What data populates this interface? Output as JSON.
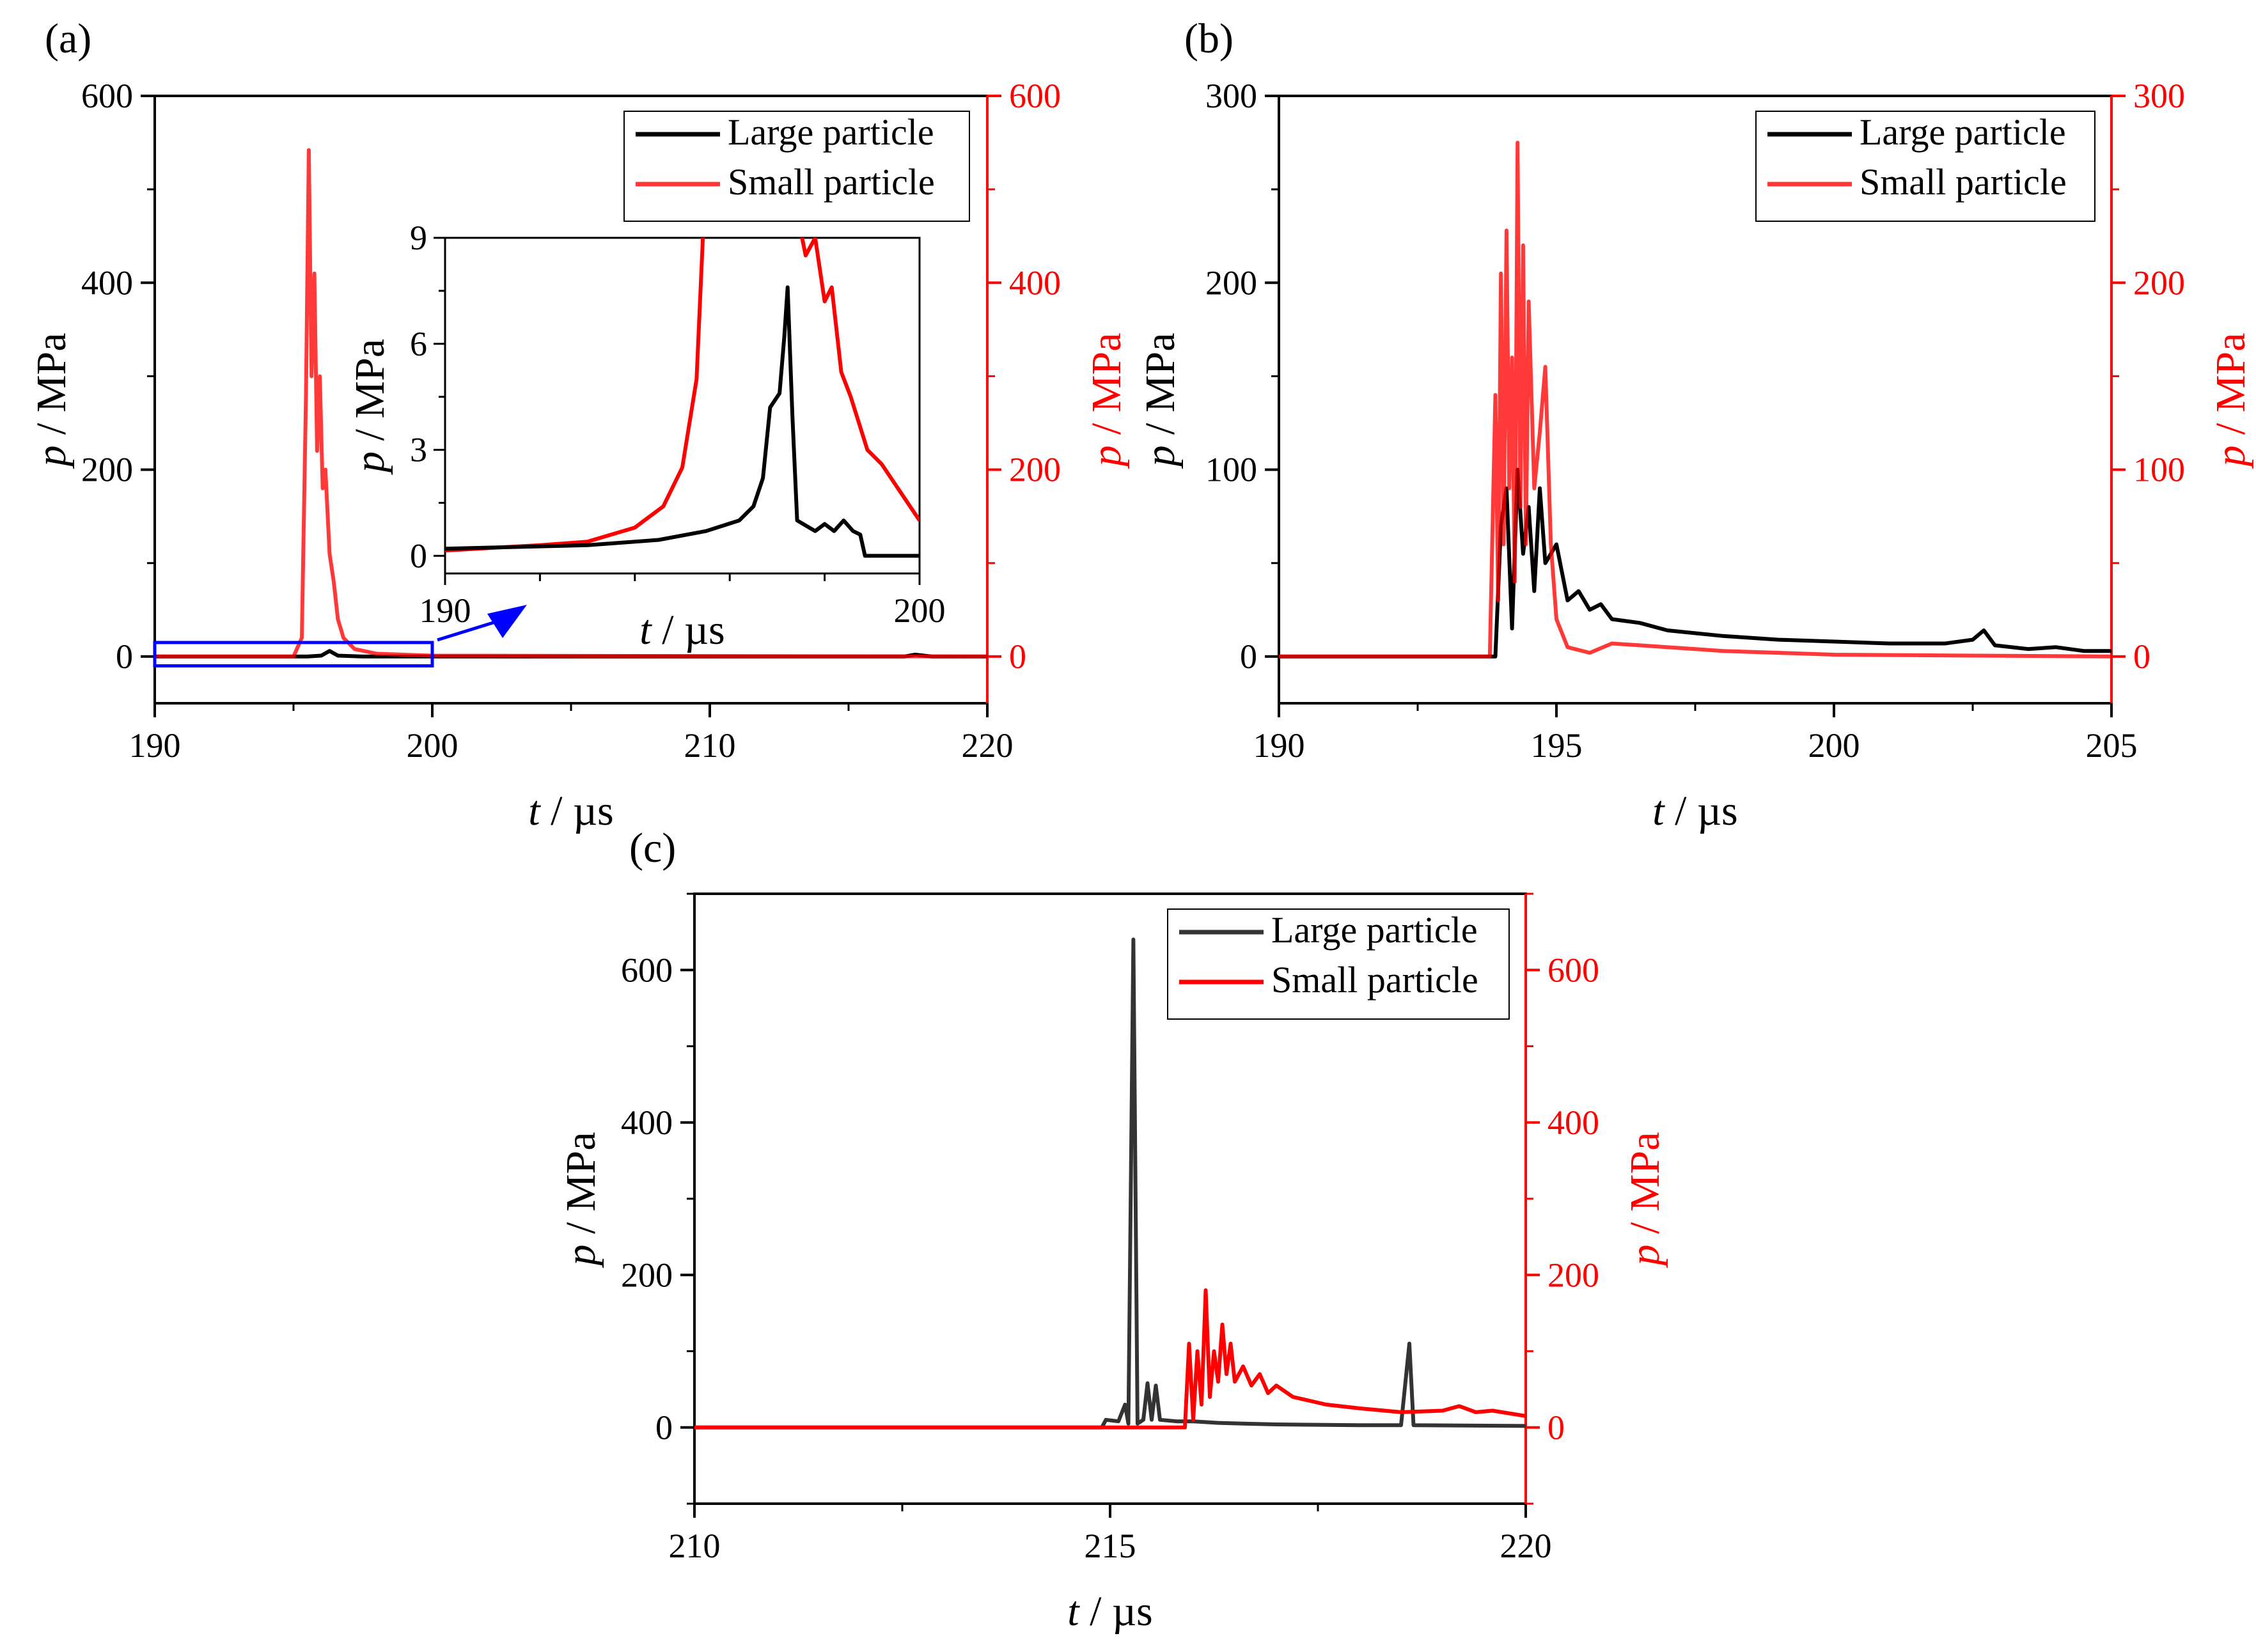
{
  "chart_data": [
    {
      "type": "line",
      "panel_label": "(a)",
      "xlabel_var": "t",
      "xlabel_unit": " / µs",
      "ylabel_var": "p",
      "ylabel_unit": " / MPa",
      "xlim": [
        190,
        220
      ],
      "ylim": [
        -50,
        600
      ],
      "y2lim": [
        -50,
        600
      ],
      "xticks": [
        190,
        200,
        210,
        220
      ],
      "yticks": [
        0,
        200,
        400,
        600
      ],
      "y2ticks": [
        0,
        200,
        400,
        600
      ],
      "legend_position": "top-right",
      "series": [
        {
          "name": "Large particle",
          "color": "#000000",
          "axis": "left",
          "points": [
            [
              190,
              0
            ],
            [
              195.5,
              0
            ],
            [
              196,
              1
            ],
            [
              196.3,
              6
            ],
            [
              196.6,
              1
            ],
            [
              197.5,
              0
            ],
            [
              217,
              0
            ],
            [
              217.4,
              2
            ],
            [
              218,
              0
            ],
            [
              220,
              0
            ]
          ]
        },
        {
          "name": "Small particle",
          "color": "#ff0000",
          "axis": "right",
          "points": [
            [
              190,
              0
            ],
            [
              195,
              0
            ],
            [
              195.3,
              20
            ],
            [
              195.45,
              280
            ],
            [
              195.55,
              542
            ],
            [
              195.65,
              300
            ],
            [
              195.75,
              410
            ],
            [
              195.85,
              220
            ],
            [
              195.95,
              300
            ],
            [
              196.05,
              180
            ],
            [
              196.15,
              200
            ],
            [
              196.3,
              110
            ],
            [
              196.45,
              80
            ],
            [
              196.6,
              40
            ],
            [
              196.8,
              20
            ],
            [
              197.2,
              8
            ],
            [
              198,
              3
            ],
            [
              200,
              1
            ],
            [
              220,
              0
            ]
          ]
        }
      ],
      "zoom_box": {
        "x": [
          190,
          200
        ],
        "y": [
          -10,
          15
        ]
      },
      "inset": {
        "xlim": [
          190,
          200
        ],
        "ylim": [
          -0.5,
          9
        ],
        "xticks": [
          190,
          200
        ],
        "yticks": [
          0,
          3,
          6,
          9
        ],
        "xlabel_var": "t",
        "xlabel_unit": " / µs",
        "ylabel_var": "p",
        "ylabel_unit": " / MPa",
        "series": [
          {
            "name": "Large particle",
            "color": "#000000",
            "points": [
              [
                190,
                0.2
              ],
              [
                193,
                0.3
              ],
              [
                194.5,
                0.45
              ],
              [
                195.5,
                0.7
              ],
              [
                196.2,
                1.0
              ],
              [
                196.5,
                1.4
              ],
              [
                196.7,
                2.2
              ],
              [
                196.85,
                4.2
              ],
              [
                197.05,
                4.6
              ],
              [
                197.15,
                6.2
              ],
              [
                197.22,
                7.6
              ],
              [
                197.32,
                4.0
              ],
              [
                197.42,
                1.0
              ],
              [
                197.8,
                0.7
              ],
              [
                198.0,
                0.9
              ],
              [
                198.2,
                0.7
              ],
              [
                198.4,
                1.0
              ],
              [
                198.6,
                0.7
              ],
              [
                198.75,
                0.6
              ],
              [
                198.85,
                0
              ],
              [
                200,
                0
              ]
            ]
          },
          {
            "name": "Small particle",
            "color": "#ff0000",
            "points": [
              [
                190,
                0.15
              ],
              [
                192,
                0.3
              ],
              [
                193,
                0.4
              ],
              [
                194,
                0.8
              ],
              [
                194.6,
                1.4
              ],
              [
                195.0,
                2.5
              ],
              [
                195.3,
                5.0
              ],
              [
                195.45,
                9.5
              ],
              [
                197.45,
                9.5
              ],
              [
                197.6,
                8.5
              ],
              [
                197.8,
                9.0
              ],
              [
                198.0,
                7.2
              ],
              [
                198.15,
                7.6
              ],
              [
                198.35,
                5.2
              ],
              [
                198.55,
                4.5
              ],
              [
                198.9,
                3.0
              ],
              [
                199.2,
                2.6
              ],
              [
                199.6,
                1.8
              ],
              [
                200,
                1.0
              ]
            ]
          }
        ]
      }
    },
    {
      "type": "line",
      "panel_label": "(b)",
      "xlabel_var": "t",
      "xlabel_unit": " / µs",
      "ylabel_var": "p",
      "ylabel_unit": " / MPa",
      "xlim": [
        190,
        205
      ],
      "ylim": [
        -25,
        300
      ],
      "y2lim": [
        -25,
        300
      ],
      "xticks": [
        190,
        195,
        200,
        205
      ],
      "yticks": [
        0,
        100,
        200,
        300
      ],
      "y2ticks": [
        0,
        100,
        200,
        300
      ],
      "legend_position": "top-right",
      "series": [
        {
          "name": "Large particle",
          "color": "#000000",
          "axis": "left",
          "points": [
            [
              190,
              0
            ],
            [
              193.9,
              0
            ],
            [
              194.0,
              70
            ],
            [
              194.1,
              90
            ],
            [
              194.2,
              15
            ],
            [
              194.3,
              100
            ],
            [
              194.4,
              55
            ],
            [
              194.5,
              80
            ],
            [
              194.6,
              35
            ],
            [
              194.7,
              90
            ],
            [
              194.8,
              50
            ],
            [
              195.0,
              60
            ],
            [
              195.2,
              30
            ],
            [
              195.4,
              35
            ],
            [
              195.6,
              25
            ],
            [
              195.8,
              28
            ],
            [
              196.0,
              20
            ],
            [
              196.5,
              18
            ],
            [
              197.0,
              14
            ],
            [
              198.0,
              11
            ],
            [
              199.0,
              9
            ],
            [
              200.0,
              8
            ],
            [
              201.0,
              7
            ],
            [
              202.0,
              7
            ],
            [
              202.5,
              9
            ],
            [
              202.7,
              14
            ],
            [
              202.9,
              6
            ],
            [
              203.5,
              4
            ],
            [
              204.0,
              5
            ],
            [
              204.5,
              3
            ],
            [
              205,
              3
            ]
          ]
        },
        {
          "name": "Small particle",
          "color": "#ff0000",
          "axis": "right",
          "points": [
            [
              190,
              0
            ],
            [
              193.8,
              0
            ],
            [
              193.9,
              140
            ],
            [
              193.95,
              30
            ],
            [
              194.0,
              205
            ],
            [
              194.05,
              60
            ],
            [
              194.1,
              228
            ],
            [
              194.15,
              90
            ],
            [
              194.2,
              160
            ],
            [
              194.25,
              40
            ],
            [
              194.3,
              275
            ],
            [
              194.35,
              80
            ],
            [
              194.4,
              220
            ],
            [
              194.45,
              60
            ],
            [
              194.5,
              190
            ],
            [
              194.6,
              90
            ],
            [
              194.7,
              120
            ],
            [
              194.8,
              155
            ],
            [
              194.9,
              60
            ],
            [
              195.0,
              20
            ],
            [
              195.2,
              5
            ],
            [
              195.6,
              2
            ],
            [
              196.0,
              7
            ],
            [
              196.5,
              6
            ],
            [
              198.0,
              3
            ],
            [
              200.0,
              1
            ],
            [
              205,
              0
            ]
          ]
        }
      ]
    },
    {
      "type": "line",
      "panel_label": "(c)",
      "xlabel_var": "t",
      "xlabel_unit": " / µs",
      "ylabel_var": "p",
      "ylabel_unit": " / MPa",
      "xlim": [
        210,
        220
      ],
      "ylim": [
        -100,
        700
      ],
      "y2lim": [
        -100,
        700
      ],
      "xticks": [
        210,
        215,
        220
      ],
      "yticks": [
        0,
        200,
        400,
        600
      ],
      "y2ticks": [
        0,
        200,
        400,
        600
      ],
      "legend_position": "top-right",
      "series": [
        {
          "name": "Large particle",
          "color": "#333333",
          "axis": "left",
          "points": [
            [
              210,
              0
            ],
            [
              214.9,
              0
            ],
            [
              214.95,
              10
            ],
            [
              215.1,
              8
            ],
            [
              215.18,
              30
            ],
            [
              215.22,
              5
            ],
            [
              215.28,
              640
            ],
            [
              215.33,
              5
            ],
            [
              215.4,
              10
            ],
            [
              215.45,
              58
            ],
            [
              215.5,
              10
            ],
            [
              215.55,
              55
            ],
            [
              215.6,
              10
            ],
            [
              215.8,
              8
            ],
            [
              216.0,
              8
            ],
            [
              216.3,
              6
            ],
            [
              216.6,
              5
            ],
            [
              217.0,
              4
            ],
            [
              218.0,
              3
            ],
            [
              218.5,
              3
            ],
            [
              218.6,
              110
            ],
            [
              218.65,
              3
            ],
            [
              220,
              2
            ]
          ]
        },
        {
          "name": "Small particle",
          "color": "#ff0000",
          "axis": "right",
          "points": [
            [
              210,
              0
            ],
            [
              215.9,
              0
            ],
            [
              215.95,
              110
            ],
            [
              216.0,
              10
            ],
            [
              216.05,
              100
            ],
            [
              216.1,
              30
            ],
            [
              216.15,
              180
            ],
            [
              216.2,
              40
            ],
            [
              216.25,
              100
            ],
            [
              216.3,
              60
            ],
            [
              216.35,
              135
            ],
            [
              216.4,
              70
            ],
            [
              216.45,
              110
            ],
            [
              216.5,
              60
            ],
            [
              216.6,
              80
            ],
            [
              216.7,
              55
            ],
            [
              216.8,
              70
            ],
            [
              216.9,
              45
            ],
            [
              217.0,
              55
            ],
            [
              217.2,
              40
            ],
            [
              217.4,
              35
            ],
            [
              217.6,
              30
            ],
            [
              218.0,
              25
            ],
            [
              218.5,
              20
            ],
            [
              219.0,
              22
            ],
            [
              219.2,
              28
            ],
            [
              219.4,
              20
            ],
            [
              219.6,
              22
            ],
            [
              220,
              15
            ]
          ]
        }
      ]
    }
  ]
}
